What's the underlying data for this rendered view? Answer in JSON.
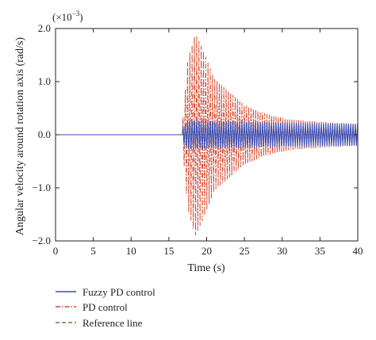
{
  "chart_data": {
    "type": "line",
    "title": "",
    "xlabel": "Time (s)",
    "ylabel": "Angular velocity around rotation axis (rad/s)",
    "y_multiplier_label": "(×10",
    "y_multiplier_exponent": "−3",
    "y_multiplier_close": ")",
    "xlim": [
      0,
      40
    ],
    "ylim": [
      -2.0,
      2.0
    ],
    "x_ticks": [
      0,
      5,
      10,
      15,
      20,
      25,
      30,
      35,
      40
    ],
    "x_tick_labels": [
      "0",
      "5",
      "10",
      "15",
      "20",
      "25",
      "30",
      "35",
      "40"
    ],
    "y_ticks": [
      2.0,
      1.0,
      0.0,
      -1.0,
      -2.0
    ],
    "y_tick_labels": [
      "2.0",
      "1.0",
      "0.0",
      "−1.0",
      "−2.0"
    ],
    "grid": false,
    "legend_position": "bottom-left below plot",
    "disturbance_start_time": 16.8,
    "series": [
      {
        "name": "Fuzzy PD control",
        "color": "#3a4fb5",
        "style": "solid",
        "oscillation_period_s": 0.3,
        "envelope": {
          "t": [
            16.8,
            17.5,
            20,
            25,
            30,
            35,
            40
          ],
          "amp": [
            0.15,
            0.27,
            0.25,
            0.24,
            0.22,
            0.21,
            0.2
          ]
        }
      },
      {
        "name": "PD control",
        "color": "#d2452c",
        "style": "dashdot",
        "oscillation_period_s": 0.3,
        "envelope": {
          "t": [
            16.8,
            17.5,
            18.5,
            19.5,
            21,
            23,
            25,
            28,
            31,
            35,
            40
          ],
          "amp": [
            0.2,
            1.4,
            1.9,
            1.6,
            1.05,
            0.8,
            0.55,
            0.38,
            0.28,
            0.24,
            0.2
          ]
        }
      },
      {
        "name": "Reference line",
        "color": "#5b8a3a",
        "style": "dashed",
        "value": 0.0
      }
    ]
  }
}
